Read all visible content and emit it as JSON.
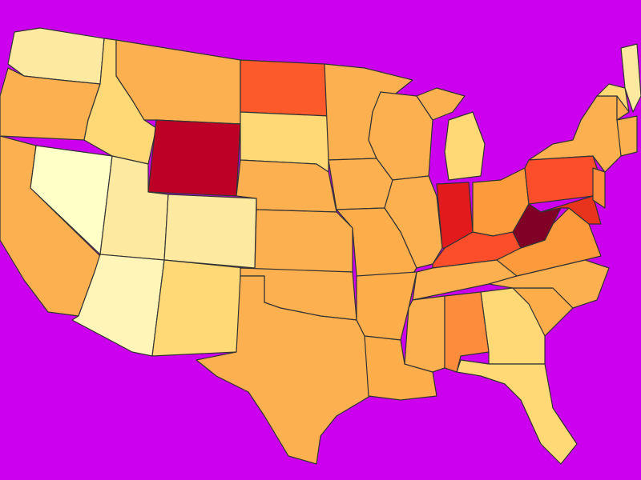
{
  "map": {
    "background": "#cc00ee",
    "border": "#333333",
    "regions": [
      {
        "color": "#fee9a0"
      },
      {
        "color": "#fdb04f"
      },
      {
        "color": "#fdb04f"
      },
      {
        "color": "#ffffc8"
      },
      {
        "color": "#fed976"
      },
      {
        "color": "#fdb04f"
      },
      {
        "color": "#bd0026"
      },
      {
        "color": "#fee9a0"
      },
      {
        "color": "#fff5b8"
      },
      {
        "color": "#fee9a0"
      },
      {
        "color": "#fed976"
      },
      {
        "color": "#fc5a2a"
      },
      {
        "color": "#fed976"
      },
      {
        "color": "#fdb04f"
      },
      {
        "color": "#fdb04f"
      },
      {
        "color": "#fdb04f"
      },
      {
        "color": "#fdb04f"
      },
      {
        "color": "#fdb04f"
      },
      {
        "color": "#fdb04f"
      },
      {
        "color": "#fdae4a"
      },
      {
        "color": "#fdae4a"
      },
      {
        "color": "#fdae4a"
      },
      {
        "color": "#fdb04f"
      },
      {
        "color": "#fdb04f"
      },
      {
        "color": "#fdb04f"
      },
      {
        "color": "#fed976"
      },
      {
        "color": "#fed976"
      },
      {
        "color": "#e31a1c"
      },
      {
        "color": "#fd9a3c"
      },
      {
        "color": "#fc4e2a"
      },
      {
        "color": "#fdb04f"
      },
      {
        "color": "#fdb04f"
      },
      {
        "color": "#fd8d3c"
      },
      {
        "color": "#fdae4a"
      },
      {
        "color": "#fed976"
      },
      {
        "color": "#fdb04f"
      },
      {
        "color": "#fdb04f"
      },
      {
        "color": "#fd9a3c"
      },
      {
        "color": "#800026"
      },
      {
        "color": "#fc4e2a"
      },
      {
        "color": "#e8341c"
      },
      {
        "color": "#fd8d3c"
      },
      {
        "color": "#fdb04f"
      },
      {
        "color": "#fed976"
      },
      {
        "color": "#fee9a0"
      },
      {
        "color": "#fdb04f"
      }
    ]
  }
}
